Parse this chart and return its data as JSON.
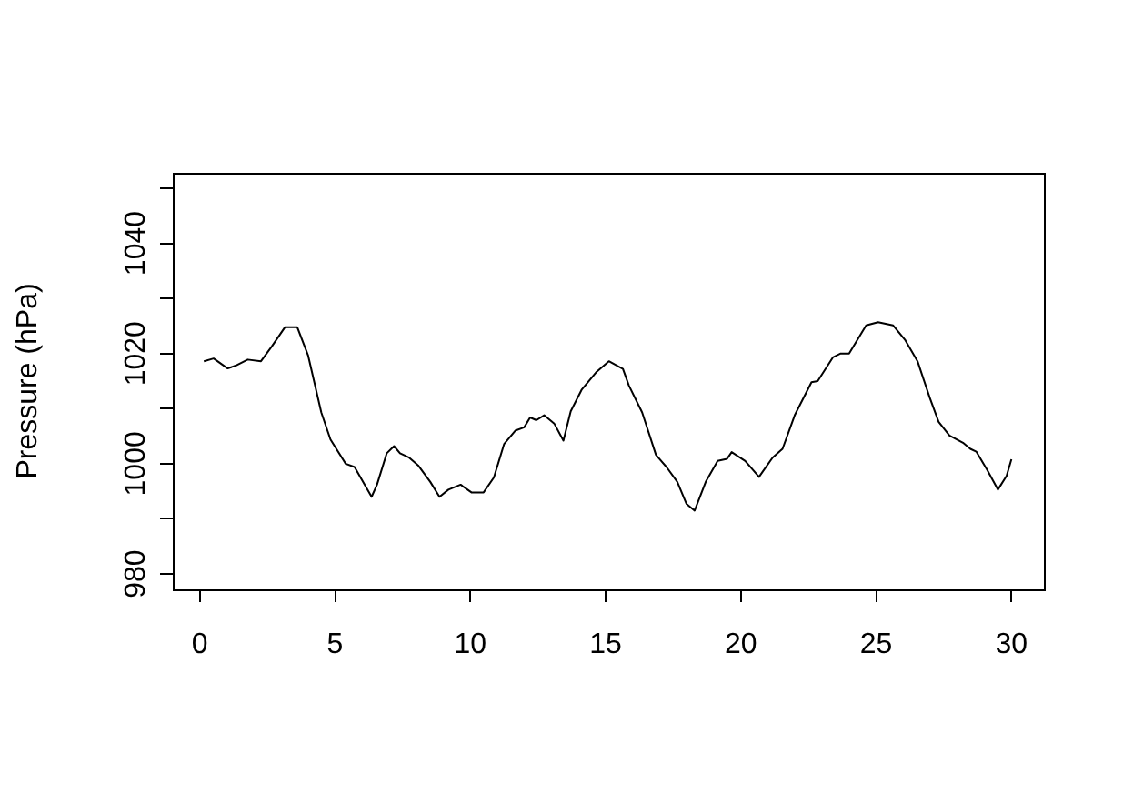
{
  "chart_data": {
    "type": "line",
    "ylabel": "Pressure (hPa)",
    "x": [
      0.15,
      0.51,
      1.03,
      1.32,
      1.77,
      2.26,
      2.66,
      3.15,
      3.6,
      4.0,
      4.49,
      4.83,
      5.39,
      5.72,
      6.35,
      6.55,
      6.91,
      7.18,
      7.4,
      7.74,
      8.07,
      8.52,
      8.86,
      9.19,
      9.64,
      10.04,
      10.49,
      10.87,
      11.25,
      11.66,
      11.99,
      12.21,
      12.44,
      12.73,
      13.1,
      13.44,
      13.71,
      14.11,
      14.67,
      15.12,
      15.64,
      15.86,
      16.35,
      16.86,
      17.25,
      17.65,
      17.99,
      18.29,
      18.7,
      19.14,
      19.49,
      19.66,
      20.16,
      20.67,
      21.17,
      21.54,
      21.99,
      22.61,
      22.84,
      23.4,
      23.69,
      24.0,
      24.63,
      25.07,
      25.63,
      26.08,
      26.53,
      26.98,
      27.31,
      27.71,
      28.21,
      28.48,
      28.7,
      29.1,
      29.5,
      29.82,
      30.0
    ],
    "series": [
      {
        "color": "#000000",
        "values": [
          1018.6,
          1019.1,
          1017.3,
          1017.8,
          1018.9,
          1018.6,
          1021.3,
          1024.8,
          1024.8,
          1019.7,
          1009.3,
          1004.4,
          1000.0,
          999.4,
          994.0,
          996.2,
          1001.9,
          1003.2,
          1001.9,
          1001.1,
          999.7,
          996.7,
          994.0,
          995.3,
          996.2,
          994.8,
          994.8,
          997.5,
          1003.6,
          1006.0,
          1006.6,
          1008.4,
          1007.9,
          1008.8,
          1007.3,
          1004.2,
          1009.5,
          1013.4,
          1016.7,
          1018.6,
          1017.2,
          1014.2,
          1009.3,
          1001.6,
          999.4,
          996.7,
          992.7,
          991.5,
          996.7,
          1000.5,
          1000.9,
          1002.1,
          1000.5,
          997.6,
          1001.1,
          1002.7,
          1008.8,
          1014.8,
          1015.0,
          1019.3,
          1020.0,
          1020.0,
          1025.1,
          1025.7,
          1025.1,
          1022.4,
          1018.6,
          1012.0,
          1007.6,
          1005.1,
          1003.8,
          1002.7,
          1002.2,
          998.9,
          995.3,
          997.8,
          1000.8
        ]
      }
    ],
    "xlim": [
      -1.0,
      31.2
    ],
    "xticks": [
      0,
      5,
      10,
      15,
      20,
      25,
      30
    ],
    "ylim": [
      977.2,
      1052.8
    ],
    "yticks": [
      980,
      {
        "value": 990,
        "label": null
      },
      1000,
      {
        "value": 1010,
        "label": null
      },
      1020,
      {
        "value": 1030,
        "label": null
      },
      1040,
      {
        "value": 1050,
        "label": null
      }
    ],
    "grid": false,
    "legend": false,
    "marker": "none",
    "line_style": "solid"
  }
}
